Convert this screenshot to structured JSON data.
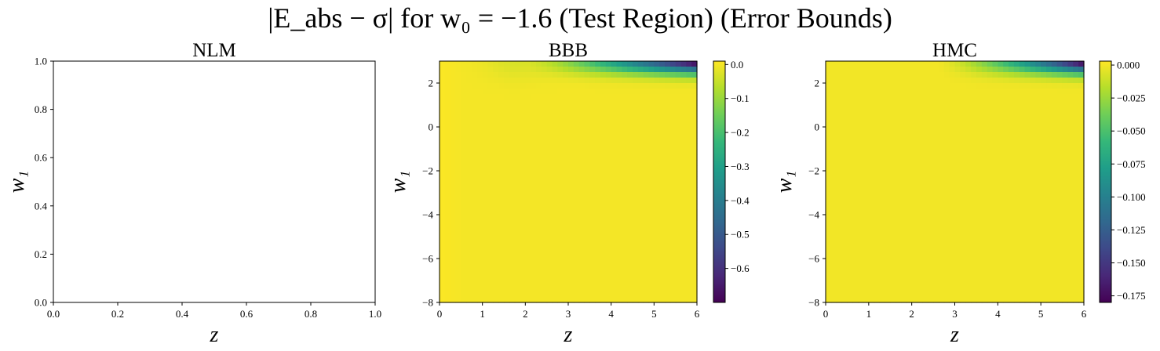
{
  "figure": {
    "title": "|E_abs − σ| for w₀ = −1.6 (Test Region) (Error Bounds)"
  },
  "colors": {
    "viridis": [
      "#440154",
      "#482878",
      "#3e4989",
      "#31688e",
      "#26828e",
      "#1f9e89",
      "#35b779",
      "#6ece58",
      "#b5de2b",
      "#fde725"
    ]
  },
  "chart_data": [
    {
      "type": "heatmap",
      "title": "NLM",
      "xlabel": "z",
      "ylabel": "w₁",
      "xlim": [
        0.0,
        1.0
      ],
      "ylim": [
        0.0,
        1.0
      ],
      "xticks": [
        "0.0",
        "0.2",
        "0.4",
        "0.6",
        "0.8",
        "1.0"
      ],
      "yticks": [
        "0.0",
        "0.2",
        "0.4",
        "0.6",
        "0.8",
        "1.0"
      ],
      "empty": true,
      "colorbar": null
    },
    {
      "type": "heatmap",
      "title": "BBB",
      "xlabel": "z",
      "ylabel": "w₁",
      "xlim": [
        0,
        6
      ],
      "ylim": [
        -8,
        3
      ],
      "xticks": [
        "0",
        "1",
        "2",
        "3",
        "4",
        "5",
        "6"
      ],
      "yticks": [
        "−8",
        "−6",
        "−4",
        "−2",
        "0",
        "2"
      ],
      "values_approx": {
        "max": 0.01,
        "min": -0.7,
        "corner_top_right": -0.7,
        "corner_top_left": 0.0,
        "bulk": 0.0
      },
      "colorbar": {
        "range": [
          -0.7,
          0.01
        ],
        "ticks": [
          "0.0",
          "−0.1",
          "−0.2",
          "−0.3",
          "−0.4",
          "−0.5",
          "−0.6"
        ]
      }
    },
    {
      "type": "heatmap",
      "title": "HMC",
      "xlabel": "z",
      "ylabel": "w₁",
      "xlim": [
        0,
        6
      ],
      "ylim": [
        -8,
        3
      ],
      "xticks": [
        "0",
        "1",
        "2",
        "3",
        "4",
        "5",
        "6"
      ],
      "yticks": [
        "−8",
        "−6",
        "−4",
        "−2",
        "0",
        "2"
      ],
      "values_approx": {
        "max": 0.003,
        "min": -0.18,
        "corner_top_right": -0.18,
        "bulk": 0.0
      },
      "colorbar": {
        "range": [
          -0.18,
          0.003
        ],
        "ticks": [
          "0.000",
          "−0.025",
          "−0.050",
          "−0.075",
          "−0.100",
          "−0.125",
          "−0.150",
          "−0.175"
        ]
      }
    }
  ]
}
